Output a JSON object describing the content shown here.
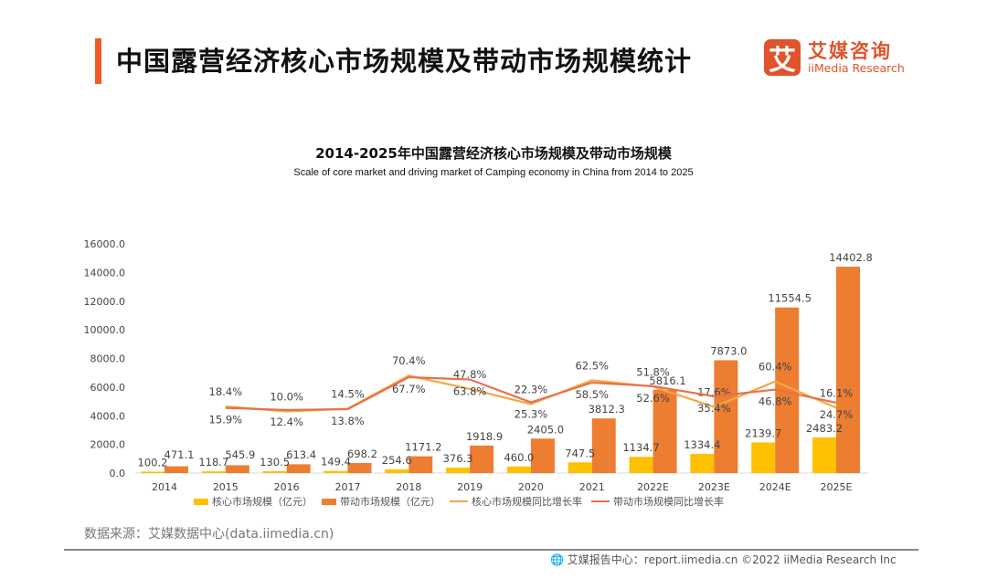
{
  "header": {
    "title": "中国露营经济核心市场规模及带动市场规模统计"
  },
  "logo": {
    "mark": "艾",
    "cn": "艾媒咨询",
    "en": "iiMedia Research",
    "color": "#e0532b"
  },
  "chart_data": {
    "type": "bar",
    "title": "2014-2025年中国露营经济核心市场规模及带动市场规模",
    "subtitle": "Scale of core market and driving market of Camping economy in China from 2014 to 2025",
    "categories": [
      "2014",
      "2015",
      "2016",
      "2017",
      "2018",
      "2019",
      "2020",
      "2021",
      "2022E",
      "2023E",
      "2024E",
      "2025E"
    ],
    "ylim": [
      0,
      16000
    ],
    "yticks": [
      "0.0",
      "2000.0",
      "4000.0",
      "6000.0",
      "8000.0",
      "10000.0",
      "12000.0",
      "14000.0",
      "16000.0"
    ],
    "grid": false,
    "legend_position": "bottom",
    "series": [
      {
        "name": "核心市场规模（亿元）",
        "kind": "bar",
        "color": "#ffc000",
        "values": [
          100.2,
          118.7,
          130.5,
          149.4,
          254.6,
          376.3,
          460.0,
          747.5,
          1134.7,
          1334.4,
          2139.7,
          2483.2
        ]
      },
      {
        "name": "带动市场规模（亿元）",
        "kind": "bar",
        "color": "#ed7d31",
        "values": [
          471.1,
          545.9,
          613.4,
          698.2,
          1171.2,
          1918.9,
          2405.0,
          3812.3,
          5816.1,
          7873.0,
          11554.5,
          14402.8
        ]
      },
      {
        "name": "核心市场规模同比增长率",
        "kind": "line",
        "unit": "%",
        "color": "#f4a742",
        "values": [
          null,
          18.4,
          10.0,
          14.5,
          70.4,
          47.8,
          22.3,
          62.5,
          51.8,
          17.6,
          60.4,
          16.1
        ]
      },
      {
        "name": "带动市场规模同比增长率",
        "kind": "line",
        "unit": "%",
        "color": "#e8714a",
        "values": [
          null,
          15.9,
          12.4,
          13.8,
          67.7,
          63.8,
          25.3,
          58.5,
          52.6,
          35.4,
          46.8,
          24.7
        ]
      }
    ]
  },
  "source": "数据来源：艾媒数据中心(data.iimedia.cn)",
  "footer": "艾媒报告中心：report.iimedia.cn   ©2022  iiMedia Research  Inc"
}
